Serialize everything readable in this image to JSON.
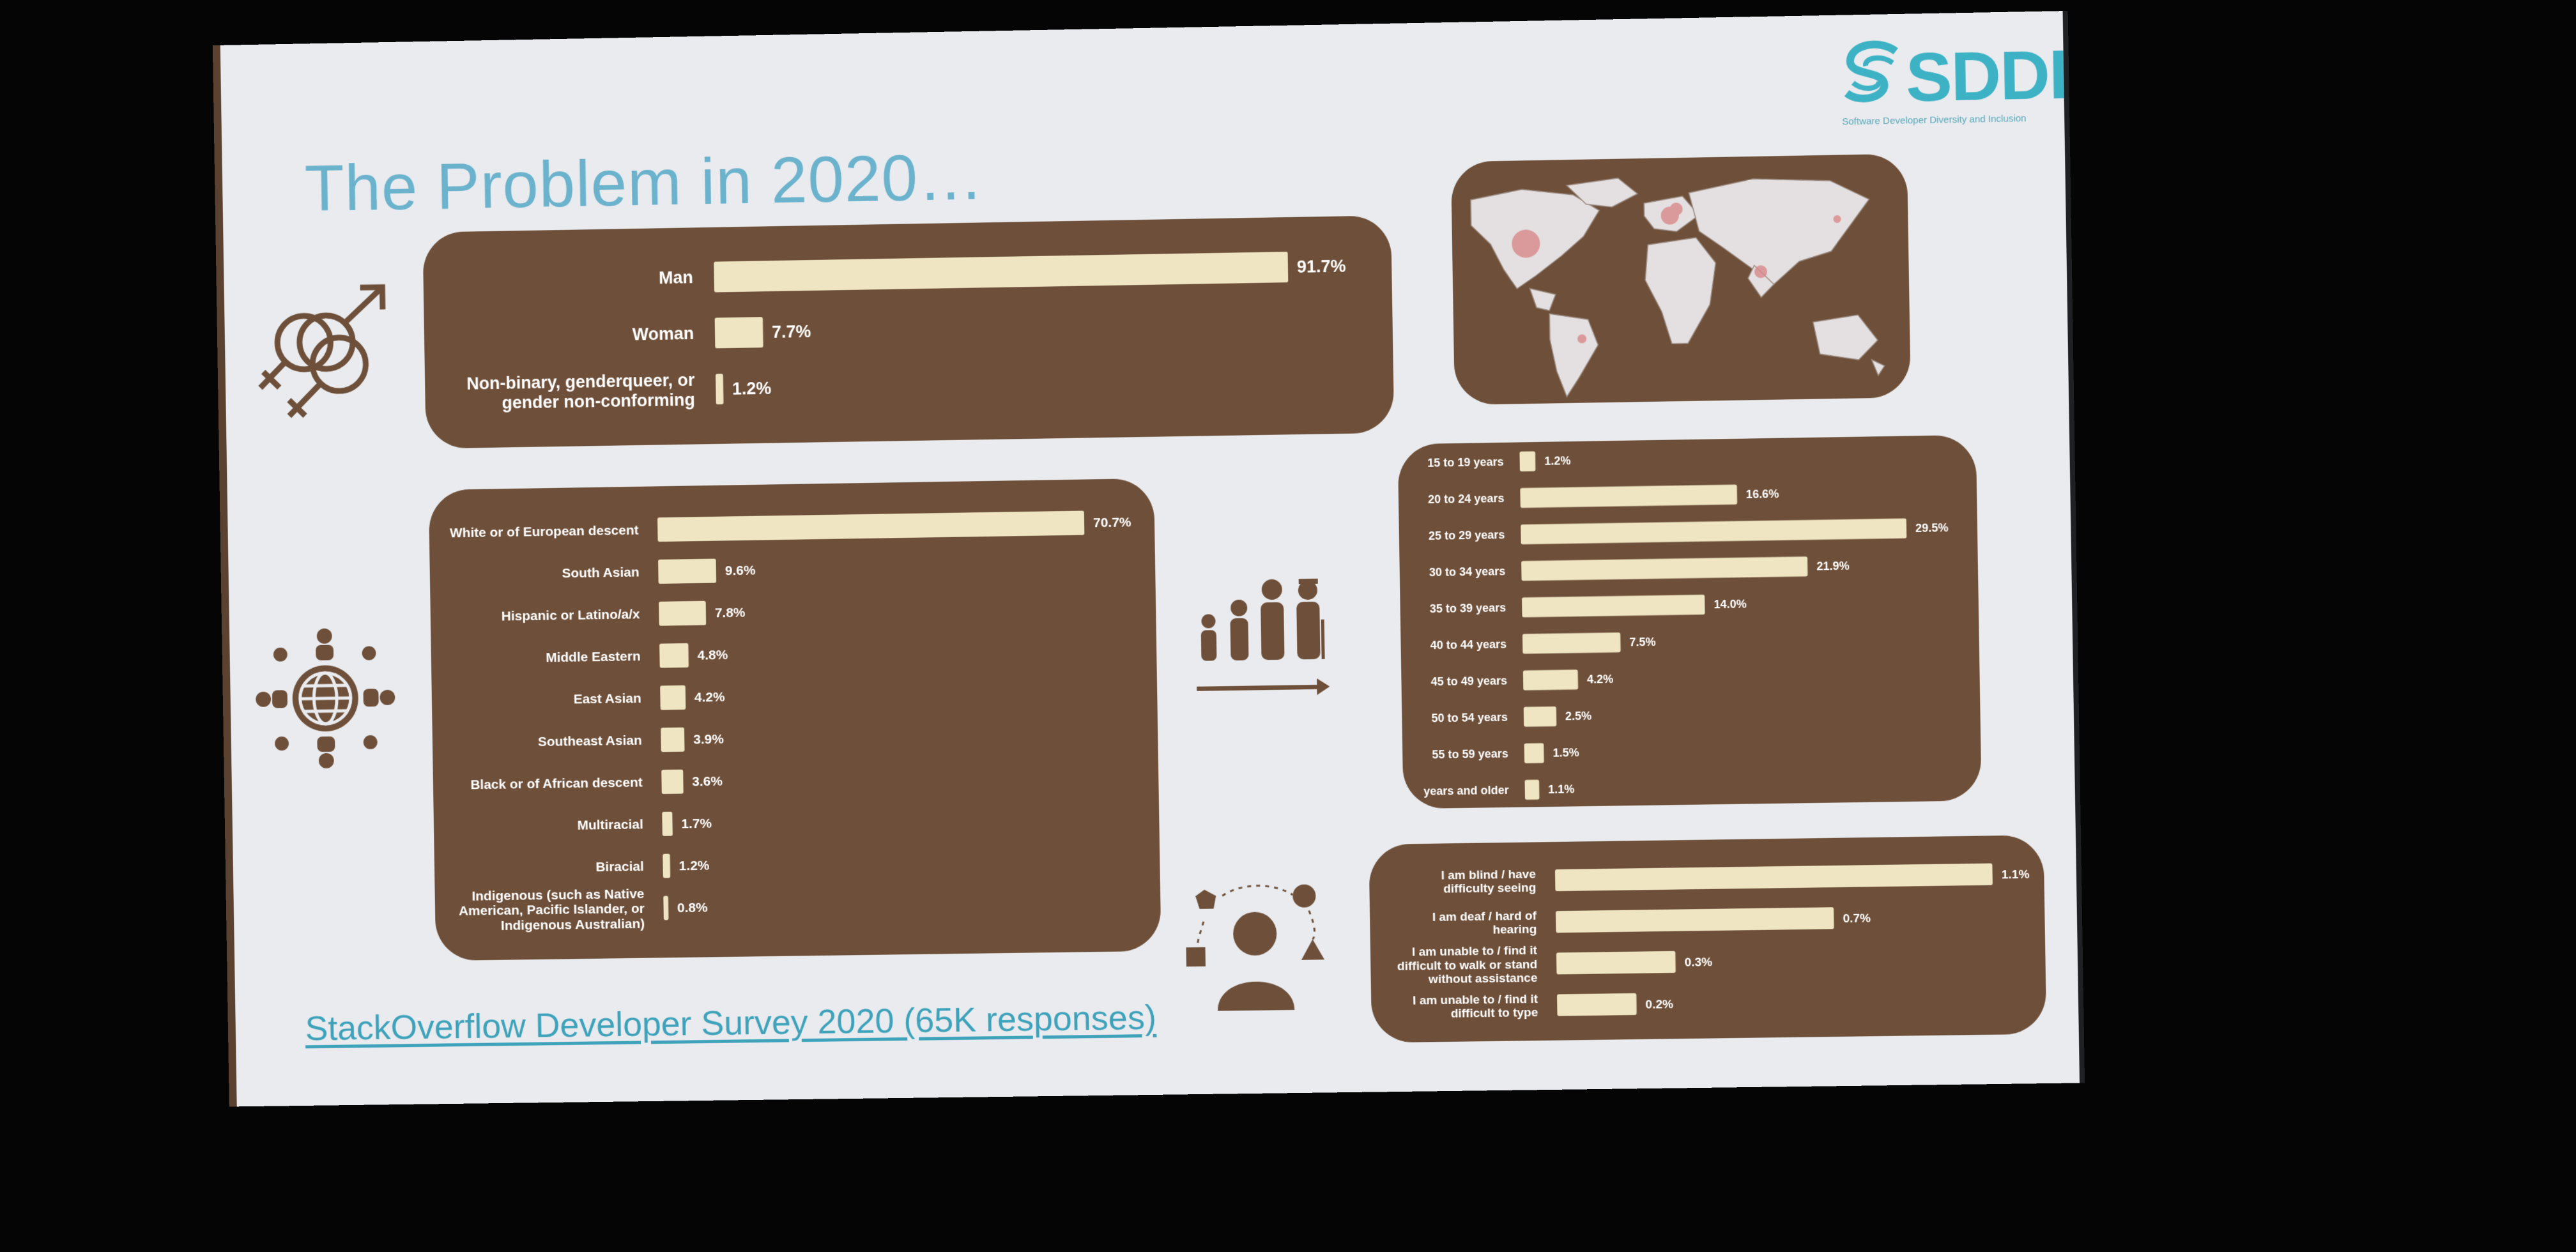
{
  "slide": {
    "title": "The Problem in 2020…",
    "source_link": "StackOverflow Developer Survey 2020 (65K responses)",
    "logo": {
      "name": "SDDI",
      "subtitle": "Software Developer Diversity and Inclusion"
    }
  },
  "colors": {
    "panel": "#6e503a",
    "bar": "#efe5c3",
    "title": "#6bb2cc",
    "label": "#ffffff",
    "slide_bg": "#e9ebee"
  },
  "icons": [
    "gender-symbols-icon",
    "globe-people-icon",
    "age-progression-icon",
    "person-shapes-icon",
    "world-map"
  ],
  "chart_data": [
    {
      "id": "gender",
      "type": "bar",
      "orientation": "horizontal",
      "categories": [
        "Man",
        "Woman",
        "Non-binary, genderqueer, or gender non-conforming"
      ],
      "values": [
        91.7,
        7.7,
        1.2
      ],
      "value_labels": [
        "91.7%",
        "7.7%",
        "1.2%"
      ]
    },
    {
      "id": "ethnicity",
      "type": "bar",
      "orientation": "horizontal",
      "categories": [
        "White or of European descent",
        "South Asian",
        "Hispanic or Latino/a/x",
        "Middle Eastern",
        "East Asian",
        "Southeast Asian",
        "Black or of African descent",
        "Multiracial",
        "Biracial",
        "Indigenous (such as Native American, Pacific Islander, or Indigenous Australian)"
      ],
      "values": [
        70.7,
        9.6,
        7.8,
        4.8,
        4.2,
        3.9,
        3.6,
        1.7,
        1.2,
        0.8
      ],
      "value_labels": [
        "70.7%",
        "9.6%",
        "7.8%",
        "4.8%",
        "4.2%",
        "3.9%",
        "3.6%",
        "1.7%",
        "1.2%",
        "0.8%"
      ]
    },
    {
      "id": "age",
      "type": "bar",
      "orientation": "horizontal",
      "categories": [
        "15 to 19 years",
        "20 to 24 years",
        "25 to 29 years",
        "30 to 34 years",
        "35 to 39 years",
        "40 to 44 years",
        "45 to 49 years",
        "50 to 54 years",
        "55 to 59 years",
        "years and older"
      ],
      "values": [
        1.2,
        16.6,
        29.5,
        21.9,
        14.0,
        7.5,
        4.2,
        2.5,
        1.5,
        1.1
      ],
      "value_labels": [
        "1.2%",
        "16.6%",
        "29.5%",
        "21.9%",
        "14.0%",
        "7.5%",
        "4.2%",
        "2.5%",
        "1.5%",
        "1.1%"
      ]
    },
    {
      "id": "disability",
      "type": "bar",
      "orientation": "horizontal",
      "categories": [
        "I am blind / have difficulty seeing",
        "I am deaf / hard of hearing",
        "I am unable to / find it difficult to walk or stand without assistance",
        "I am unable to / find it difficult to type"
      ],
      "values": [
        1.1,
        0.7,
        0.3,
        0.2
      ],
      "value_labels": [
        "1.1%",
        "0.7%",
        "0.3%",
        "0.2%"
      ]
    }
  ]
}
